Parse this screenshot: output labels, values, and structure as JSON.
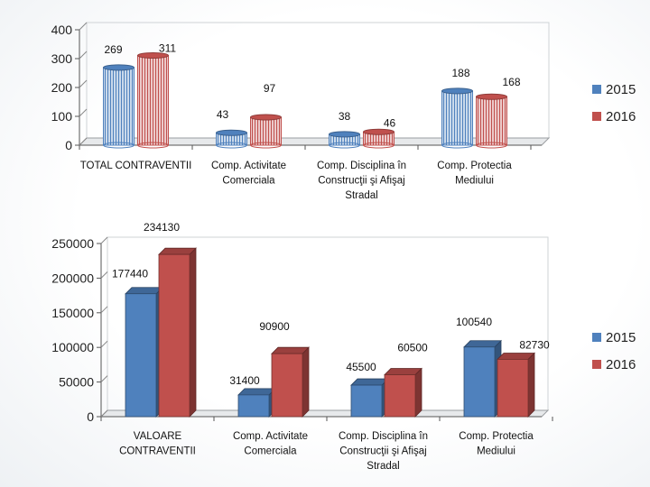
{
  "chart_data": [
    {
      "type": "bar",
      "title": "",
      "xlabel": "",
      "ylabel": "",
      "ylim": [
        0,
        400
      ],
      "yticks": [
        "0",
        "100",
        "200",
        "300",
        "400"
      ],
      "categories": [
        [
          "TOTAL CONTRAVENTII"
        ],
        [
          "Comp. Activitate",
          "Comerciala"
        ],
        [
          "Comp. Disciplina în",
          "Construcţii şi Afişaj",
          "Stradal"
        ],
        [
          "Comp. Protectia",
          "Mediului"
        ]
      ],
      "series": [
        {
          "name": "2015",
          "color": "#4f81bd",
          "values": [
            269,
            43,
            38,
            188
          ],
          "labels": [
            "269",
            "43",
            "38",
            "188"
          ]
        },
        {
          "name": "2016",
          "color": "#c0504d",
          "values": [
            311,
            97,
            46,
            168
          ],
          "labels": [
            "311",
            "97",
            "46",
            "168"
          ]
        }
      ],
      "legend_position": "right"
    },
    {
      "type": "bar",
      "title": "",
      "xlabel": "",
      "ylabel": "",
      "ylim": [
        0,
        250000
      ],
      "yticks": [
        "0",
        "50000",
        "100000",
        "150000",
        "200000",
        "250000"
      ],
      "categories": [
        [
          "VALOARE",
          "CONTRAVENTII"
        ],
        [
          "Comp. Activitate",
          "Comerciala"
        ],
        [
          "Comp. Disciplina în",
          "Construcţii şi Afişaj",
          "Stradal"
        ],
        [
          "Comp. Protectia",
          "Mediului"
        ]
      ],
      "series": [
        {
          "name": "2015",
          "color": "#4f81bd",
          "values": [
            177440,
            31400,
            45500,
            100540
          ],
          "labels": [
            "177440",
            "31400",
            "45500",
            "100540"
          ]
        },
        {
          "name": "2016",
          "color": "#c0504d",
          "values": [
            234130,
            90900,
            60500,
            82730
          ],
          "labels": [
            "234130",
            "90900",
            "60500",
            "82730"
          ]
        }
      ],
      "legend_position": "right"
    }
  ]
}
